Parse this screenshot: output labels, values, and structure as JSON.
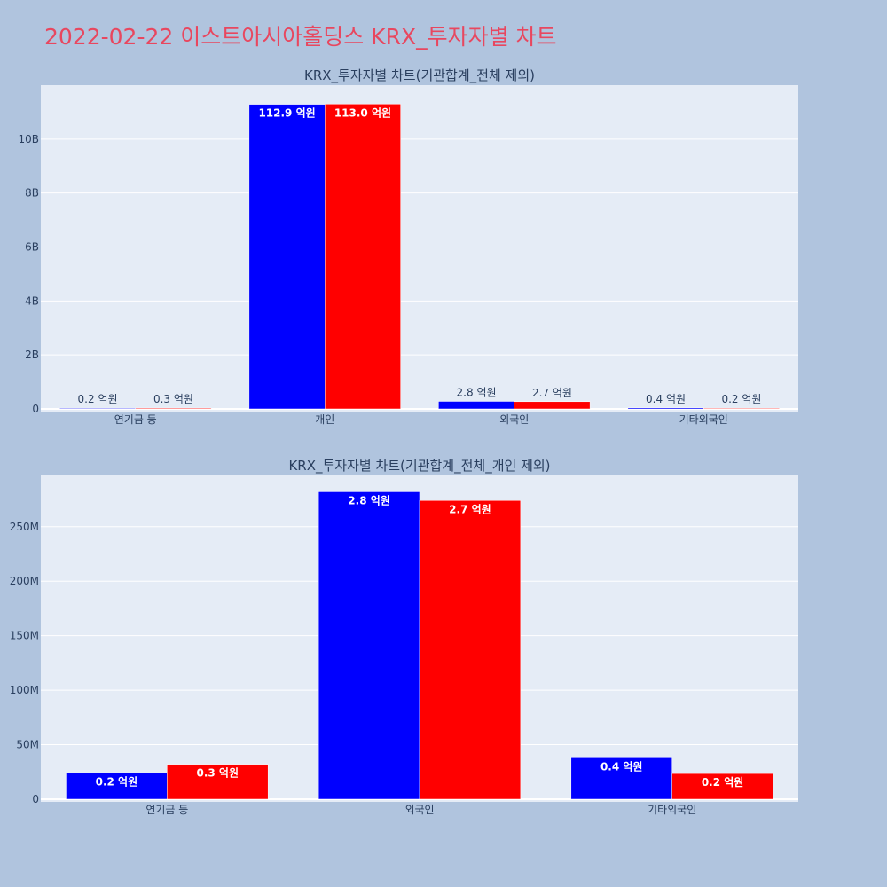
{
  "title": "2022-02-22 이스트아시아홀딩스 KRX_투자자별 차트",
  "colors": {
    "page_bg": "#b0c4de",
    "plot_bg": "#e5ecf6",
    "series_a": "#0000ff",
    "series_b": "#ff0000",
    "title": "#e8475f",
    "text": "#2a3f5f"
  },
  "chart_data": [
    {
      "type": "bar",
      "title": "KRX_투자자별 차트(기관합계_전체 제외)",
      "categories": [
        "연기금 등",
        "개인",
        "외국인",
        "기타외국인"
      ],
      "series": [
        {
          "color": "#0000ff",
          "values": [
            20000000,
            11290000000,
            280000000,
            40000000
          ],
          "labels": [
            "0.2 억원",
            "112.9 억원",
            "2.8 억원",
            "0.4 억원"
          ]
        },
        {
          "color": "#ff0000",
          "values": [
            30000000,
            11300000000,
            270000000,
            20000000
          ],
          "labels": [
            "0.3 억원",
            "113.0 억원",
            "2.7 억원",
            "0.2 억원"
          ]
        }
      ],
      "ylim": [
        0,
        12000000000
      ],
      "yticks": [
        0,
        2000000000,
        4000000000,
        6000000000,
        8000000000,
        10000000000
      ],
      "ytick_labels": [
        "0",
        "2B",
        "4B",
        "6B",
        "8B",
        "10B"
      ],
      "grid": true
    },
    {
      "type": "bar",
      "title": "KRX_투자자별 차트(기관합계_전체_개인 제외)",
      "categories": [
        "연기금 등",
        "외국인",
        "기타외국인"
      ],
      "series": [
        {
          "color": "#0000ff",
          "values": [
            24000000,
            282000000,
            38000000
          ],
          "labels": [
            "0.2 억원",
            "2.8 억원",
            "0.4 억원"
          ]
        },
        {
          "color": "#ff0000",
          "values": [
            32000000,
            274000000,
            23500000
          ],
          "labels": [
            "0.3 억원",
            "2.7 억원",
            "0.2 억원"
          ]
        }
      ],
      "ylim": [
        0,
        297000000
      ],
      "yticks": [
        0,
        50000000,
        100000000,
        150000000,
        200000000,
        250000000
      ],
      "ytick_labels": [
        "0",
        "50M",
        "100M",
        "150M",
        "200M",
        "250M"
      ],
      "grid": true
    }
  ]
}
